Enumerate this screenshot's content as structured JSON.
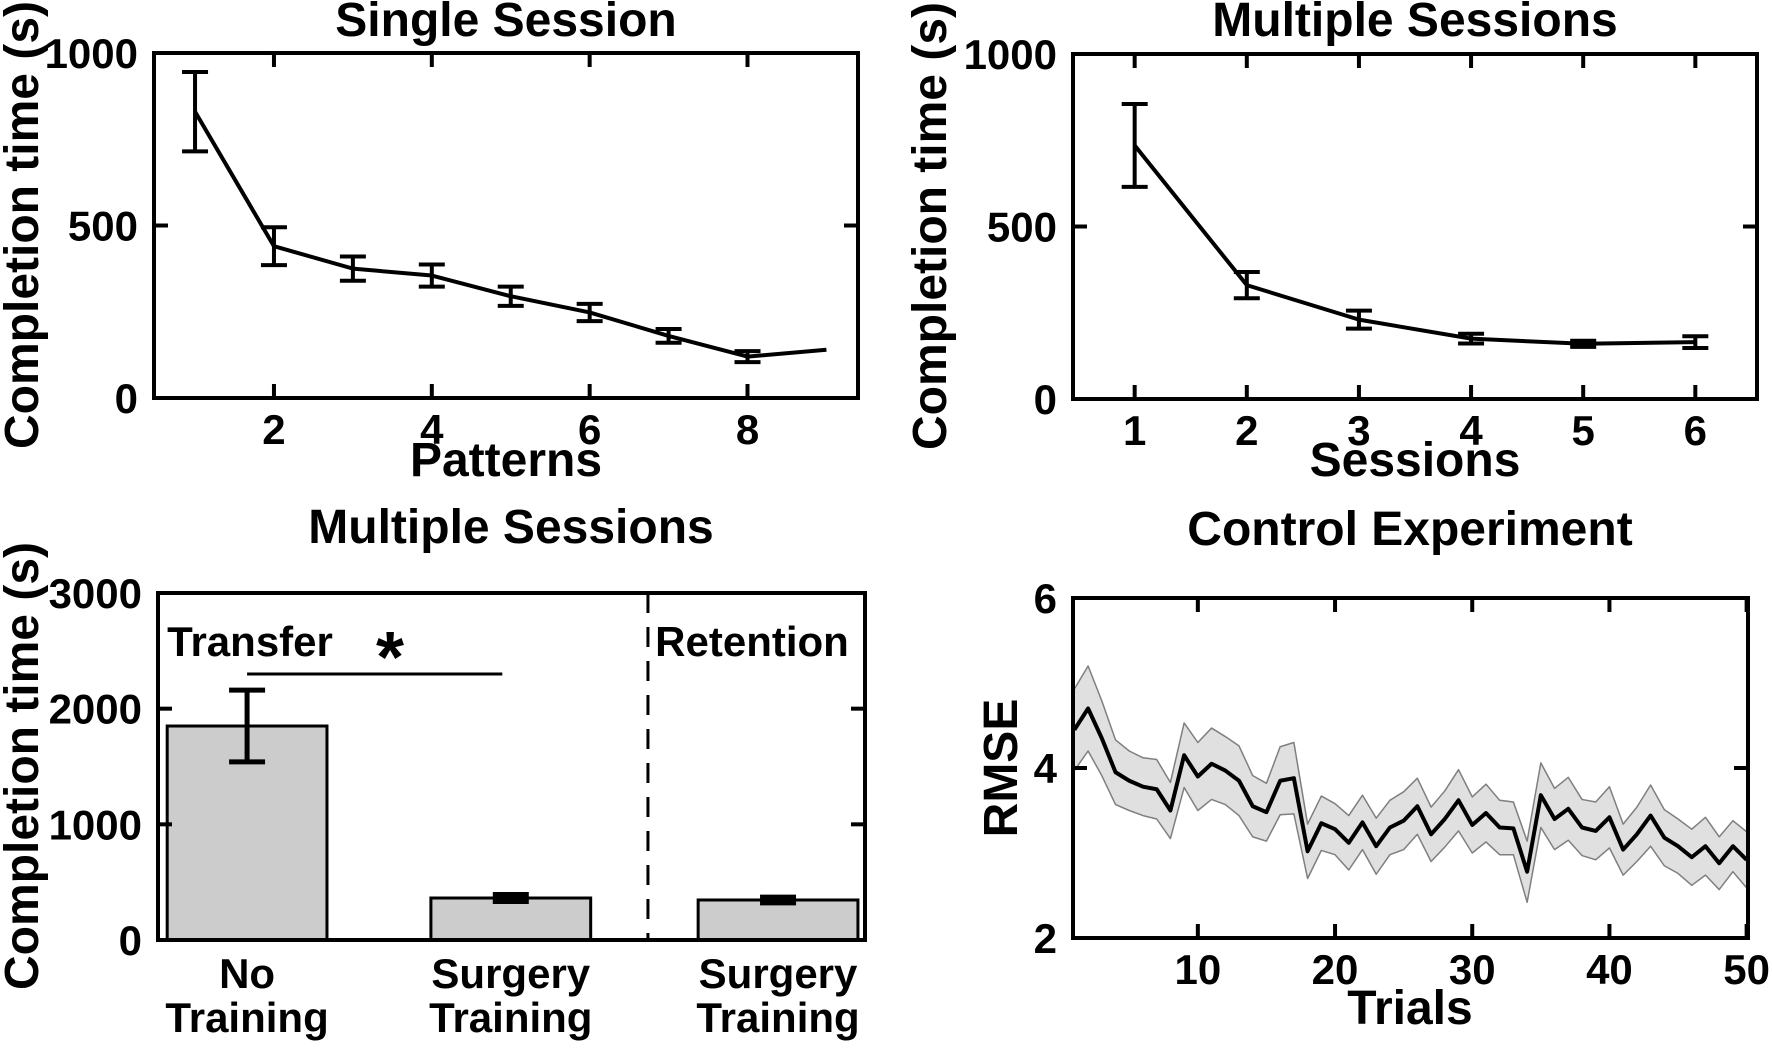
{
  "colors": {
    "background": "#ffffff",
    "axis": "#000000",
    "line": "#000000",
    "bar_fill": "#cccccc",
    "band_fill": "#e0e0e0",
    "band_edge": "#7f7f7f",
    "text": "#000000"
  },
  "chart_data": [
    {
      "id": "single-session",
      "type": "line",
      "title": "Single Session",
      "xlabel": "Patterns",
      "ylabel": "Completion time (s)",
      "x": [
        1,
        2,
        3,
        4,
        5,
        6,
        7,
        8,
        9
      ],
      "y": [
        830,
        440,
        375,
        355,
        295,
        248,
        180,
        120,
        140
      ],
      "yerr": [
        115,
        55,
        35,
        32,
        28,
        25,
        20,
        16,
        0
      ],
      "xlim": [
        0.48,
        9.4
      ],
      "ylim": [
        0,
        1000
      ],
      "xticks": [
        2,
        4,
        6,
        8
      ],
      "yticks": [
        0,
        500,
        1000
      ],
      "legend": "none",
      "grid": false
    },
    {
      "id": "multiple-sessions-line",
      "type": "line",
      "title": "Multiple Sessions",
      "xlabel": "Sessions",
      "ylabel": "Completion time (s)",
      "x": [
        1,
        2,
        3,
        4,
        5,
        6
      ],
      "y": [
        735,
        330,
        230,
        175,
        160,
        165
      ],
      "yerr": [
        120,
        38,
        26,
        14,
        9,
        17
      ],
      "xlim": [
        0.45,
        6.55
      ],
      "ylim": [
        0,
        1000
      ],
      "xticks": [
        1,
        2,
        3,
        4,
        5,
        6
      ],
      "yticks": [
        0,
        500,
        1000
      ],
      "legend": "none",
      "grid": false
    },
    {
      "id": "multiple-sessions-bar",
      "type": "bar",
      "title": "Multiple Sessions",
      "ylabel": "Completion time (s)",
      "categories": [
        [
          "No",
          "Training"
        ],
        [
          "Surgery",
          "Training"
        ],
        [
          "Surgery",
          "Training"
        ]
      ],
      "values": [
        1850,
        363,
        346
      ],
      "errors": [
        310,
        30,
        25
      ],
      "bar_center_fracs": [
        0.126,
        0.499,
        0.877
      ],
      "bar_width_frac": 0.226,
      "ylim": [
        0,
        3000
      ],
      "yticks": [
        0,
        1000,
        2000,
        3000
      ],
      "legend": "none",
      "grid": false,
      "annotations": {
        "transfer": "Transfer",
        "retention": "Retention",
        "star": "*",
        "transfer_x_frac": 0.13,
        "retention_x_frac": 0.84,
        "star_x_frac": 0.328,
        "divider_x_frac": 0.693,
        "sig_line": {
          "x1_frac": 0.126,
          "x2_frac": 0.487,
          "y_value": 2300
        }
      }
    },
    {
      "id": "control-experiment",
      "type": "band-line",
      "title": "Control Experiment",
      "xlabel": "Trials",
      "ylabel": "RMSE",
      "x_start": 1,
      "y": [
        4.45,
        4.7,
        4.35,
        3.95,
        3.85,
        3.78,
        3.75,
        3.5,
        4.15,
        3.9,
        4.05,
        3.97,
        3.85,
        3.55,
        3.48,
        3.85,
        3.88,
        3.02,
        3.35,
        3.28,
        3.12,
        3.36,
        3.08,
        3.3,
        3.38,
        3.55,
        3.22,
        3.4,
        3.62,
        3.33,
        3.47,
        3.3,
        3.29,
        2.78,
        3.68,
        3.4,
        3.52,
        3.3,
        3.26,
        3.42,
        3.04,
        3.22,
        3.44,
        3.18,
        3.08,
        2.95,
        3.08,
        2.88,
        3.08,
        2.92
      ],
      "band_halfwidth": [
        0.48,
        0.5,
        0.44,
        0.38,
        0.35,
        0.34,
        0.35,
        0.33,
        0.38,
        0.4,
        0.42,
        0.4,
        0.41,
        0.36,
        0.34,
        0.4,
        0.42,
        0.32,
        0.32,
        0.3,
        0.32,
        0.32,
        0.33,
        0.32,
        0.34,
        0.33,
        0.32,
        0.33,
        0.36,
        0.33,
        0.34,
        0.32,
        0.31,
        0.36,
        0.38,
        0.36,
        0.37,
        0.33,
        0.34,
        0.36,
        0.3,
        0.32,
        0.36,
        0.33,
        0.32,
        0.33,
        0.34,
        0.31,
        0.3,
        0.33
      ],
      "xlim": [
        0.9,
        50.1
      ],
      "ylim": [
        2,
        6
      ],
      "xticks": [
        10,
        20,
        30,
        40,
        50
      ],
      "yticks": [
        2,
        4,
        6
      ],
      "legend": "none",
      "grid": false
    }
  ]
}
